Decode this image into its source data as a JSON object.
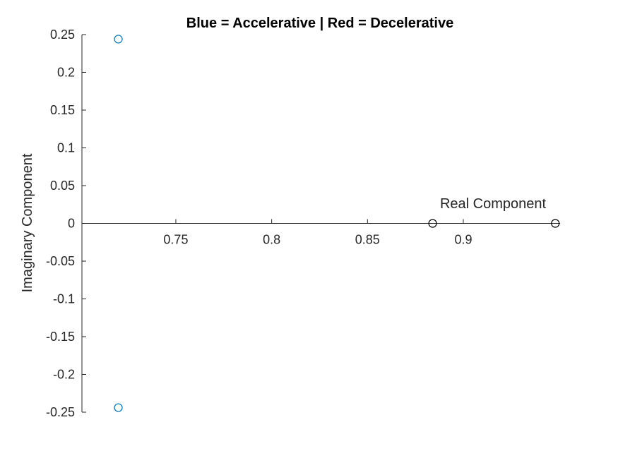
{
  "chart_data": {
    "type": "scatter",
    "title": "Blue = Accelerative | Red = Decelerative",
    "xlabel": "Real Component",
    "ylabel": "Imaginary Component",
    "xlim": [
      0.701,
      0.9505
    ],
    "ylim": [
      -0.25,
      0.25
    ],
    "x_ticks": [
      "0.75",
      "0.8",
      "0.85",
      "0.9"
    ],
    "x_tick_values": [
      0.75,
      0.8,
      0.85,
      0.9
    ],
    "y_ticks": [
      "0.25",
      "0.2",
      "0.15",
      "0.1",
      "0.05",
      "0",
      "-0.05",
      "-0.1",
      "-0.15",
      "-0.2",
      "-0.25"
    ],
    "y_tick_values": [
      0.25,
      0.2,
      0.15,
      0.1,
      0.05,
      0,
      -0.05,
      -0.1,
      -0.15,
      -0.2,
      -0.25
    ],
    "grid": false,
    "axis_location": "origin",
    "marker": "open-circle",
    "series": [
      {
        "color": "#0072BD",
        "points": [
          [
            0.72,
            0.244
          ],
          [
            0.72,
            -0.244
          ]
        ]
      },
      {
        "color": "#000000",
        "points": [
          [
            0.884,
            0.0
          ],
          [
            0.948,
            0.0
          ]
        ]
      }
    ],
    "axis_color": "#262626"
  }
}
